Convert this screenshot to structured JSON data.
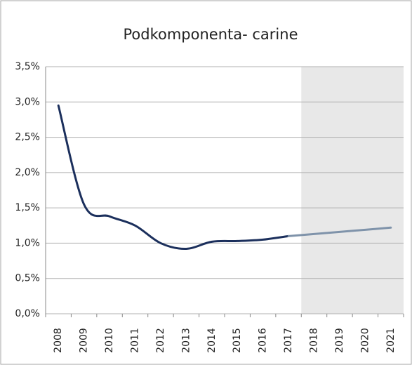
{
  "chart_data": {
    "type": "line",
    "title": "Podkomponenta- carine",
    "categories": [
      "2008",
      "2009",
      "2010",
      "2011",
      "2012",
      "2013",
      "2014",
      "2015",
      "2016",
      "2017",
      "2018",
      "2019",
      "2020",
      "2021"
    ],
    "series": [
      {
        "color": "#1b2f5c",
        "values": [
          2.95,
          1.55,
          1.38,
          1.25,
          1.0,
          0.92,
          1.02,
          1.03,
          1.05,
          1.1,
          null,
          null,
          null,
          null
        ]
      },
      {
        "color": "#7f93aa",
        "values": [
          null,
          null,
          null,
          null,
          null,
          null,
          null,
          null,
          null,
          1.1,
          1.13,
          1.16,
          1.19,
          1.22
        ]
      }
    ],
    "ylim": [
      0,
      3.5
    ],
    "yticks": [
      {
        "value": 0,
        "label": "0,0%"
      },
      {
        "value": 0.5,
        "label": "0,5%"
      },
      {
        "value": 1,
        "label": "1,0%"
      },
      {
        "value": 1.5,
        "label": "1,5%"
      },
      {
        "value": 2,
        "label": "2,0%"
      },
      {
        "value": 2.5,
        "label": "2,5%"
      },
      {
        "value": 3,
        "label": "3,0%"
      },
      {
        "value": 3.5,
        "label": "3,5%"
      }
    ],
    "grid": true
  }
}
